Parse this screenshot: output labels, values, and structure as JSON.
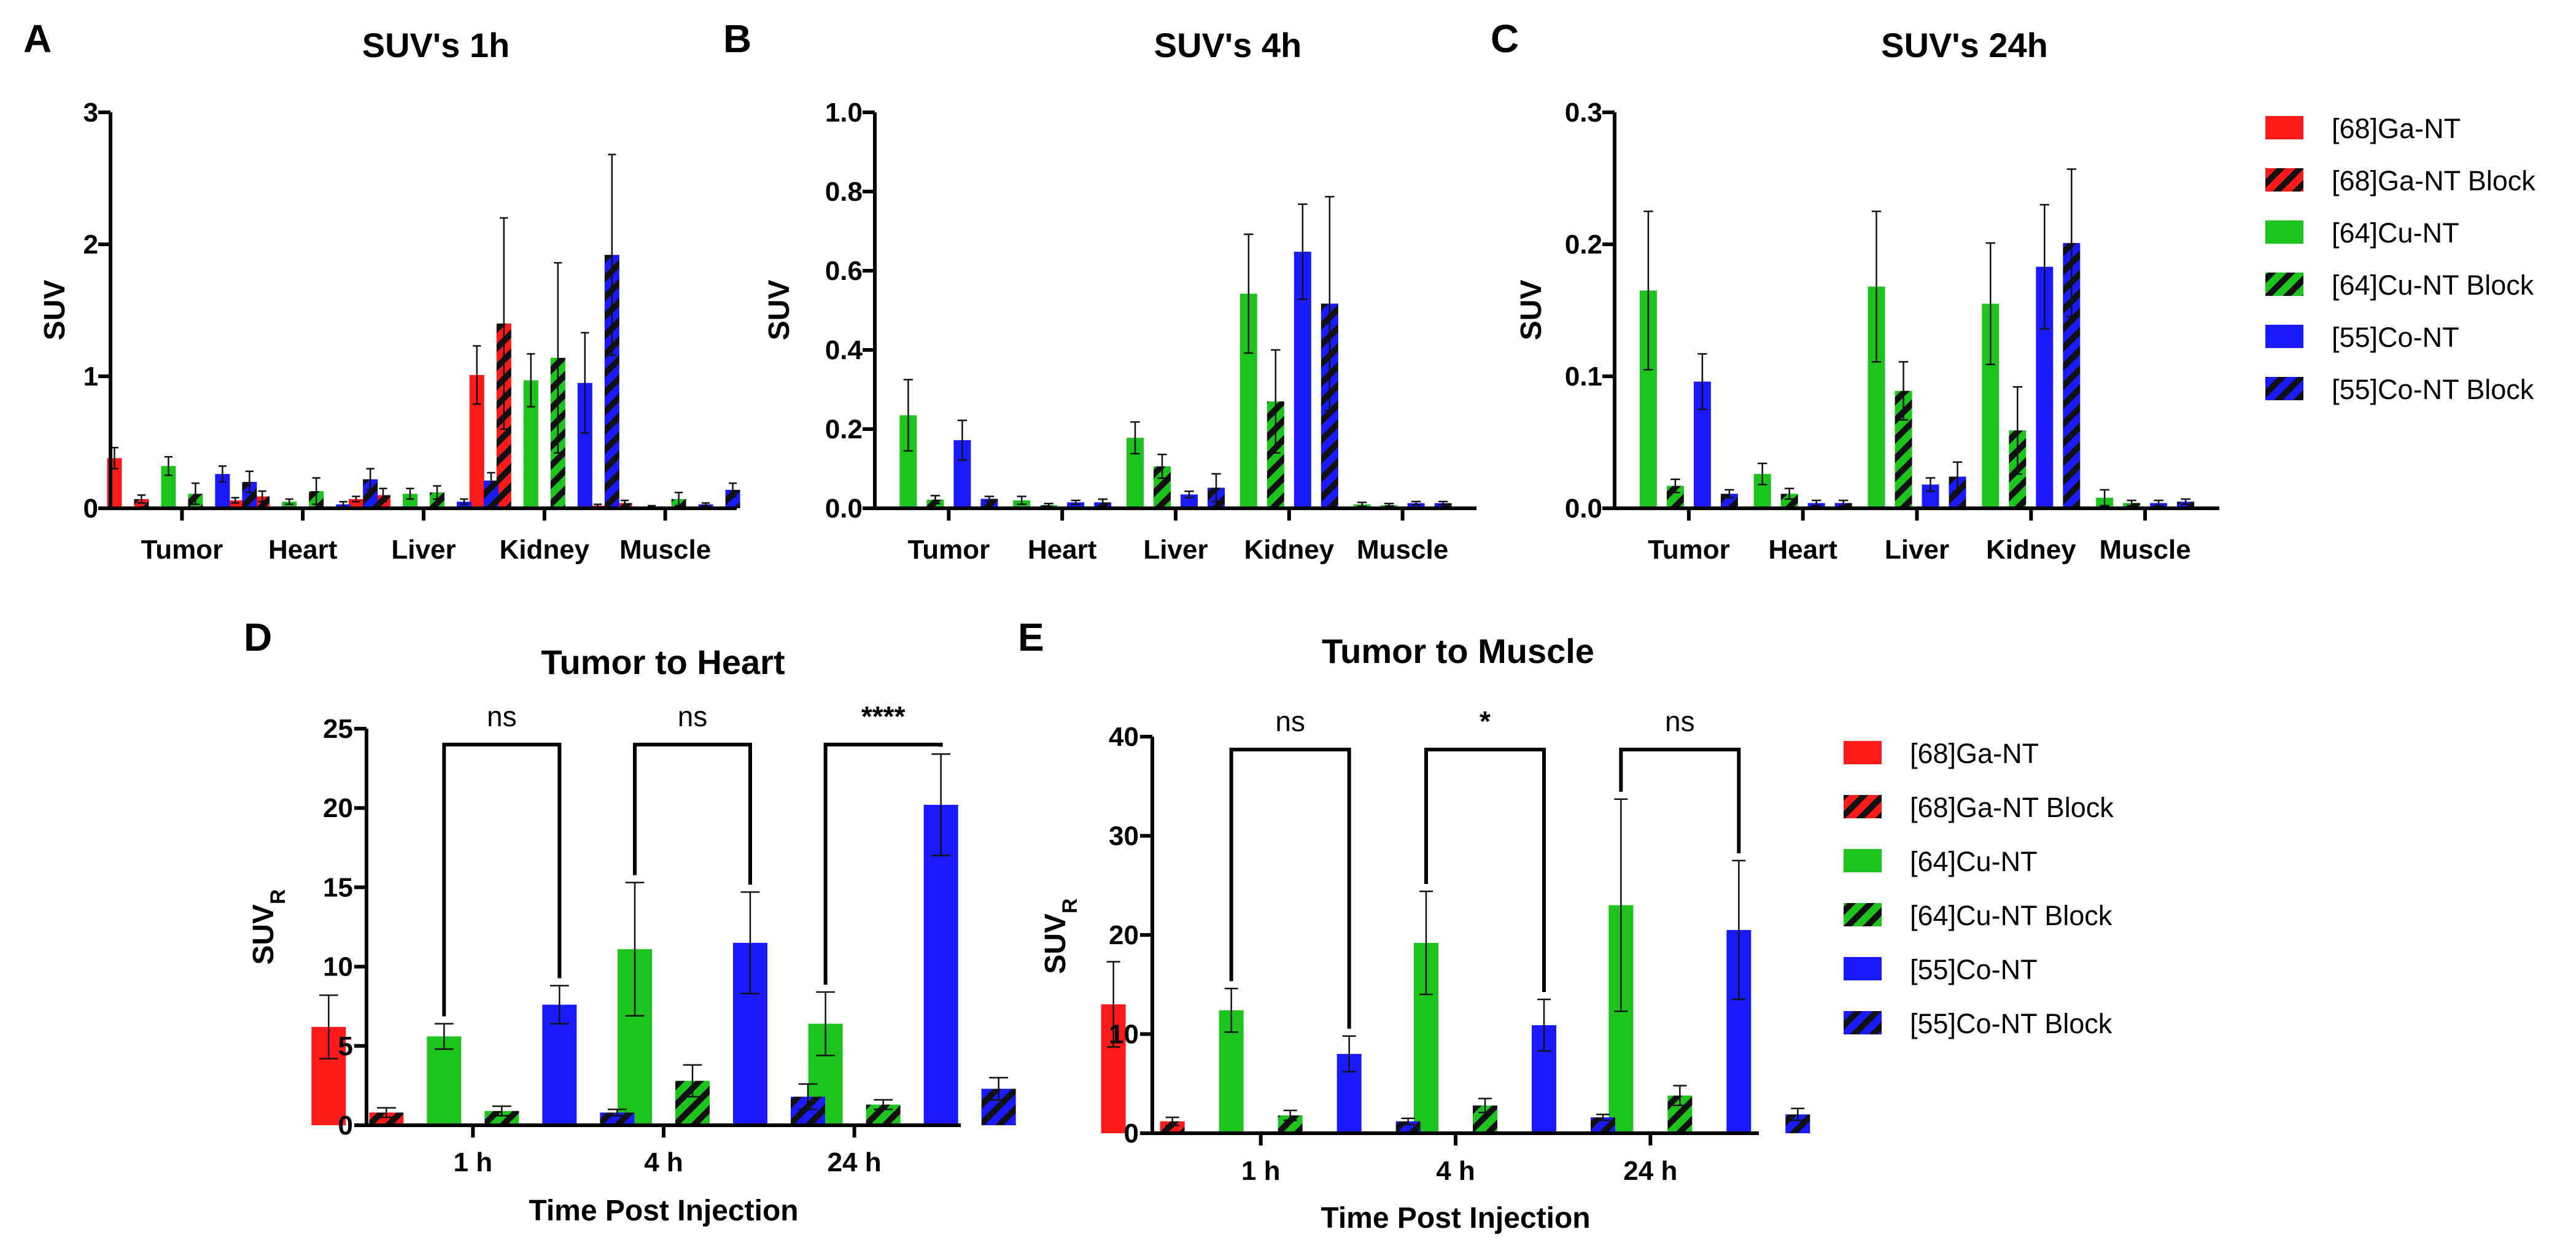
{
  "colors": {
    "ga": "#ff1a1a",
    "cu": "#1ec41e",
    "co": "#1a1aff",
    "stripe": "#111111"
  },
  "legend": {
    "entries": [
      {
        "label": "[68]Ga-NT",
        "color": "ga",
        "hatched": false
      },
      {
        "label": "[68]Ga-NT Block",
        "color": "ga",
        "hatched": true
      },
      {
        "label": "[64]Cu-NT",
        "color": "cu",
        "hatched": false
      },
      {
        "label": "[64]Cu-NT Block",
        "color": "cu",
        "hatched": true
      },
      {
        "label": "[55]Co-NT",
        "color": "co",
        "hatched": false
      },
      {
        "label": "[55]Co-NT Block",
        "color": "co",
        "hatched": true
      }
    ]
  },
  "chart_data": [
    {
      "id": "A",
      "panel_label": "A",
      "type": "bar",
      "title": "SUV's 1h",
      "xlabel": "",
      "ylabel": "SUV",
      "ylim": [
        0,
        3
      ],
      "yticks": [
        "0",
        "1",
        "2",
        "3"
      ],
      "ytick_values": [
        0,
        1,
        2,
        3
      ],
      "categories": [
        "Tumor",
        "Heart",
        "Liver",
        "Kidney",
        "Muscle"
      ],
      "series": [
        {
          "name": "[68]Ga-NT",
          "values": [
            0.38,
            0.06,
            0.07,
            1.01,
            0.02
          ],
          "errors": [
            0.08,
            0.02,
            0.02,
            0.22,
            0.01
          ]
        },
        {
          "name": "[68]Ga-NT Block",
          "values": [
            0.07,
            0.09,
            0.1,
            1.4,
            0.04
          ],
          "errors": [
            0.03,
            0.04,
            0.05,
            0.8,
            0.02
          ]
        },
        {
          "name": "[64]Cu-NT",
          "values": [
            0.32,
            0.05,
            0.11,
            0.97,
            0.01
          ],
          "errors": [
            0.07,
            0.02,
            0.04,
            0.2,
            0.01
          ]
        },
        {
          "name": "[64]Cu-NT Block",
          "values": [
            0.11,
            0.13,
            0.12,
            1.14,
            0.07
          ],
          "errors": [
            0.08,
            0.1,
            0.05,
            0.72,
            0.05
          ]
        },
        {
          "name": "[55]Co-NT",
          "values": [
            0.26,
            0.03,
            0.05,
            0.95,
            0.03
          ],
          "errors": [
            0.06,
            0.02,
            0.02,
            0.38,
            0.01
          ]
        },
        {
          "name": "[55]Co-NT Block",
          "values": [
            0.2,
            0.22,
            0.21,
            1.92,
            0.14
          ],
          "errors": [
            0.08,
            0.08,
            0.06,
            0.76,
            0.05
          ]
        }
      ]
    },
    {
      "id": "B",
      "panel_label": "B",
      "type": "bar",
      "title": "SUV's 4h",
      "xlabel": "",
      "ylabel": "SUV",
      "ylim": [
        0,
        1.0
      ],
      "yticks": [
        "0.0",
        "0.2",
        "0.4",
        "0.6",
        "0.8",
        "1.0"
      ],
      "ytick_values": [
        0,
        0.2,
        0.4,
        0.6,
        0.8,
        1.0
      ],
      "categories": [
        "Tumor",
        "Heart",
        "Liver",
        "Kidney",
        "Muscle"
      ],
      "series": [
        {
          "name": "[64]Cu-NT",
          "values": [
            0.235,
            0.02,
            0.178,
            0.542,
            0.01
          ],
          "errors": [
            0.09,
            0.01,
            0.04,
            0.15,
            0.005
          ]
        },
        {
          "name": "[64]Cu-NT Block",
          "values": [
            0.022,
            0.008,
            0.106,
            0.27,
            0.008
          ],
          "errors": [
            0.01,
            0.004,
            0.03,
            0.13,
            0.004
          ]
        },
        {
          "name": "[55]Co-NT",
          "values": [
            0.172,
            0.015,
            0.035,
            0.648,
            0.013
          ],
          "errors": [
            0.05,
            0.005,
            0.008,
            0.12,
            0.004
          ]
        },
        {
          "name": "[55]Co-NT Block",
          "values": [
            0.024,
            0.015,
            0.052,
            0.517,
            0.013
          ],
          "errors": [
            0.006,
            0.008,
            0.035,
            0.27,
            0.004
          ]
        }
      ]
    },
    {
      "id": "C",
      "panel_label": "C",
      "type": "bar",
      "title": "SUV's 24h",
      "xlabel": "",
      "ylabel": "SUV",
      "ylim": [
        0,
        0.3
      ],
      "yticks": [
        "0.0",
        "0.1",
        "0.2",
        "0.3"
      ],
      "ytick_values": [
        0,
        0.1,
        0.2,
        0.3
      ],
      "categories": [
        "Tumor",
        "Heart",
        "Liver",
        "Kidney",
        "Muscle"
      ],
      "series": [
        {
          "name": "[64]Cu-NT",
          "values": [
            0.165,
            0.026,
            0.168,
            0.155,
            0.008
          ],
          "errors": [
            0.06,
            0.008,
            0.057,
            0.046,
            0.006
          ]
        },
        {
          "name": "[64]Cu-NT Block",
          "values": [
            0.017,
            0.011,
            0.089,
            0.059,
            0.004
          ],
          "errors": [
            0.005,
            0.004,
            0.022,
            0.033,
            0.002
          ]
        },
        {
          "name": "[55]Co-NT",
          "values": [
            0.096,
            0.004,
            0.018,
            0.183,
            0.004
          ],
          "errors": [
            0.021,
            0.002,
            0.005,
            0.047,
            0.002
          ]
        },
        {
          "name": "[55]Co-NT Block",
          "values": [
            0.011,
            0.004,
            0.024,
            0.201,
            0.005
          ],
          "errors": [
            0.003,
            0.002,
            0.011,
            0.056,
            0.002
          ]
        }
      ]
    },
    {
      "id": "D",
      "panel_label": "D",
      "type": "bar",
      "title": "Tumor to Heart",
      "xlabel": "Time Post Injection",
      "ylabel": "SUV",
      "ylabel_sub": "R",
      "ylim": [
        0,
        25
      ],
      "yticks": [
        "0",
        "5",
        "10",
        "15",
        "20",
        "25"
      ],
      "ytick_values": [
        0,
        5,
        10,
        15,
        20,
        25
      ],
      "categories": [
        "1 h",
        "4 h",
        "24 h"
      ],
      "series": [
        {
          "name": "[68]Ga-NT",
          "values": [
            6.2,
            null,
            null
          ],
          "errors": [
            2.0,
            null,
            null
          ]
        },
        {
          "name": "[68]Ga-NT Block",
          "values": [
            0.8,
            null,
            null
          ],
          "errors": [
            0.3,
            null,
            null
          ]
        },
        {
          "name": "[64]Cu-NT",
          "values": [
            5.6,
            11.1,
            6.4
          ],
          "errors": [
            0.8,
            4.2,
            2.0
          ]
        },
        {
          "name": "[64]Cu-NT Block",
          "values": [
            0.9,
            2.8,
            1.3
          ],
          "errors": [
            0.3,
            1.0,
            0.3
          ]
        },
        {
          "name": "[55]Co-NT",
          "values": [
            7.6,
            11.5,
            20.2
          ],
          "errors": [
            1.2,
            3.2,
            3.2
          ]
        },
        {
          "name": "[55]Co-NT Block",
          "values": [
            0.8,
            1.8,
            2.3
          ],
          "errors": [
            0.2,
            0.8,
            0.7
          ]
        }
      ],
      "significance": [
        {
          "group": 0,
          "from": 2,
          "to": 4,
          "label": "ns",
          "bracket_y": 24.0
        },
        {
          "group": 1,
          "from": 2,
          "to": 4,
          "label": "ns",
          "bracket_y": 24.0
        },
        {
          "group": 2,
          "from": 2,
          "to": 4,
          "label": "****",
          "bracket_y": 24.0
        }
      ]
    },
    {
      "id": "E",
      "panel_label": "E",
      "type": "bar",
      "title": "Tumor to Muscle",
      "xlabel": "Time Post Injection",
      "ylabel": "SUV",
      "ylabel_sub": "R",
      "ylim": [
        0,
        40
      ],
      "yticks": [
        "0",
        "10",
        "20",
        "30",
        "40"
      ],
      "ytick_values": [
        0,
        10,
        20,
        30,
        40
      ],
      "categories": [
        "1 h",
        "4 h",
        "24 h"
      ],
      "series": [
        {
          "name": "[68]Ga-NT",
          "values": [
            13.0,
            null,
            null
          ],
          "errors": [
            4.3,
            null,
            null
          ]
        },
        {
          "name": "[68]Ga-NT Block",
          "values": [
            1.2,
            null,
            null
          ],
          "errors": [
            0.4,
            null,
            null
          ]
        },
        {
          "name": "[64]Cu-NT",
          "values": [
            12.4,
            19.2,
            23.0
          ],
          "errors": [
            2.2,
            5.2,
            10.7
          ]
        },
        {
          "name": "[64]Cu-NT Block",
          "values": [
            1.8,
            2.8,
            3.8
          ],
          "errors": [
            0.5,
            0.7,
            1.0
          ]
        },
        {
          "name": "[55]Co-NT",
          "values": [
            8.0,
            10.9,
            20.5
          ],
          "errors": [
            1.8,
            2.6,
            7.0
          ]
        },
        {
          "name": "[55]Co-NT Block",
          "values": [
            1.2,
            1.6,
            1.9
          ],
          "errors": [
            0.3,
            0.3,
            0.6
          ]
        }
      ],
      "significance": [
        {
          "group": 0,
          "from": 2,
          "to": 4,
          "label": "ns",
          "bracket_y": 38.7
        },
        {
          "group": 1,
          "from": 2,
          "to": 4,
          "label": "*",
          "bracket_y": 38.7
        },
        {
          "group": 2,
          "from": 2,
          "to": 4,
          "label": "ns",
          "bracket_y": 38.7
        }
      ]
    }
  ]
}
